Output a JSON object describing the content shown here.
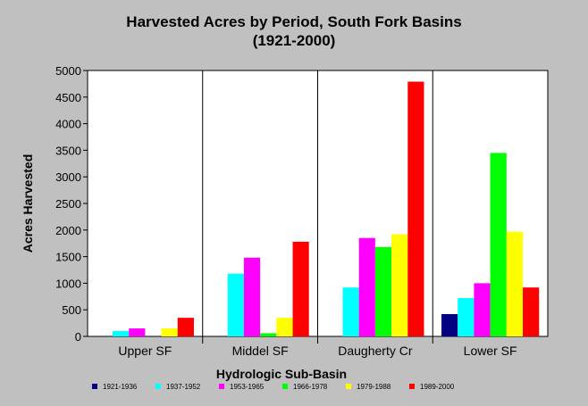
{
  "chart_data": {
    "type": "bar",
    "title_line1": "Harvested Acres by Period, South Fork Basins",
    "title_line2": "(1921-2000)",
    "xlabel": "Hydrologic Sub-Basin",
    "ylabel": "Acres Harvested",
    "ylim": [
      0,
      5000
    ],
    "yticks": [
      0,
      500,
      1000,
      1500,
      2000,
      2500,
      3000,
      3500,
      4000,
      4500,
      5000
    ],
    "grid": false,
    "legend_position": "bottom",
    "categories": [
      "Upper SF",
      "Middel SF",
      "Daugherty Cr",
      "Lower SF"
    ],
    "series": [
      {
        "name": "1921-1936",
        "color": "#000080",
        "values": [
          0,
          0,
          0,
          420
        ]
      },
      {
        "name": "1937-1952",
        "color": "#00ffff",
        "values": [
          100,
          1180,
          920,
          720
        ]
      },
      {
        "name": "1953-1965",
        "color": "#ff00ff",
        "values": [
          150,
          1480,
          1850,
          1000
        ]
      },
      {
        "name": "1966-1978",
        "color": "#00ff00",
        "values": [
          0,
          60,
          1680,
          3450
        ]
      },
      {
        "name": "1979-1988",
        "color": "#ffff00",
        "values": [
          150,
          350,
          1920,
          1970
        ]
      },
      {
        "name": "1989-2000",
        "color": "#ff0000",
        "values": [
          350,
          1780,
          4790,
          920
        ]
      }
    ]
  }
}
